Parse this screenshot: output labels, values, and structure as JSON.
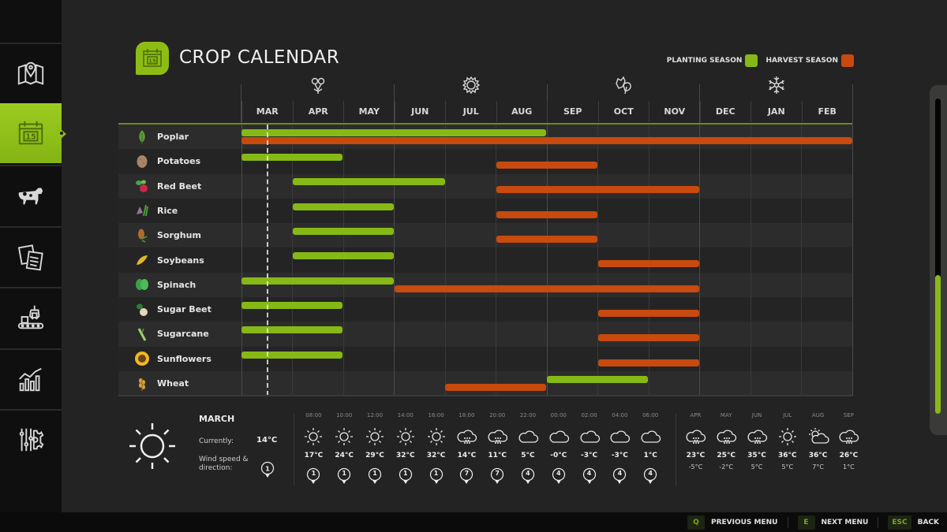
{
  "header": {
    "title": "CROP CALENDAR",
    "badge_icon": "calendar-15-icon",
    "legend": [
      {
        "label": "PLANTING SEASON",
        "color": "#86b916"
      },
      {
        "label": "HARVEST SEASON",
        "color": "#c84a0e"
      }
    ]
  },
  "sidebar": {
    "items": [
      {
        "name": "map",
        "icon": "map-pin-icon",
        "active": false
      },
      {
        "name": "calendar",
        "icon": "calendar-icon",
        "active": true
      },
      {
        "name": "animals",
        "icon": "cow-icon",
        "active": false
      },
      {
        "name": "contracts",
        "icon": "documents-icon",
        "active": false
      },
      {
        "name": "production",
        "icon": "factory-conveyor-icon",
        "active": false
      },
      {
        "name": "statistics",
        "icon": "chart-icon",
        "active": false
      },
      {
        "name": "settings",
        "icon": "sliders-gear-icon",
        "active": false
      }
    ]
  },
  "seasons": [
    {
      "name": "spring",
      "icon": "flower-icon"
    },
    {
      "name": "summer",
      "icon": "sun-icon"
    },
    {
      "name": "autumn",
      "icon": "leaves-icon"
    },
    {
      "name": "winter",
      "icon": "snowflake-icon"
    }
  ],
  "colors": {
    "planting": "#86b916",
    "harvest": "#c84a0e",
    "accent": "#8dbc15"
  },
  "chart_data": {
    "type": "gantt",
    "title": "CROP CALENDAR",
    "months": [
      "MAR",
      "APR",
      "MAY",
      "JUN",
      "JUL",
      "AUG",
      "SEP",
      "OCT",
      "NOV",
      "DEC",
      "JAN",
      "FEB"
    ],
    "current_month_marker": "MAR (mid)",
    "crops": [
      {
        "name": "Poplar",
        "icon": "poplar-leaf-icon",
        "planting": [
          "MAR",
          "AUG"
        ],
        "harvest": [
          "MAR",
          "FEB"
        ]
      },
      {
        "name": "Potatoes",
        "icon": "potato-icon",
        "planting": [
          "MAR",
          "APR"
        ],
        "harvest": [
          "AUG",
          "SEP"
        ]
      },
      {
        "name": "Red Beet",
        "icon": "red-beet-icon",
        "planting": [
          "APR",
          "JUN"
        ],
        "harvest": [
          "AUG",
          "NOV"
        ]
      },
      {
        "name": "Rice",
        "icon": "rice-icon",
        "planting": [
          "APR",
          "MAY"
        ],
        "harvest": [
          "AUG",
          "SEP"
        ]
      },
      {
        "name": "Sorghum",
        "icon": "sorghum-icon",
        "planting": [
          "APR",
          "MAY"
        ],
        "harvest": [
          "AUG",
          "SEP"
        ]
      },
      {
        "name": "Soybeans",
        "icon": "soybeans-icon",
        "planting": [
          "APR",
          "MAY"
        ],
        "harvest": [
          "OCT",
          "NOV"
        ]
      },
      {
        "name": "Spinach",
        "icon": "spinach-icon",
        "planting": [
          "MAR",
          "MAY"
        ],
        "harvest": [
          "JUN",
          "NOV"
        ]
      },
      {
        "name": "Sugar Beet",
        "icon": "sugar-beet-icon",
        "planting": [
          "MAR",
          "APR"
        ],
        "harvest": [
          "OCT",
          "NOV"
        ]
      },
      {
        "name": "Sugarcane",
        "icon": "sugarcane-icon",
        "planting": [
          "MAR",
          "APR"
        ],
        "harvest": [
          "OCT",
          "NOV"
        ]
      },
      {
        "name": "Sunflowers",
        "icon": "sunflower-icon",
        "planting": [
          "MAR",
          "APR"
        ],
        "harvest": [
          "OCT",
          "NOV"
        ]
      },
      {
        "name": "Wheat",
        "icon": "wheat-icon",
        "planting": [
          "SEP",
          "OCT"
        ],
        "harvest": [
          "JUL",
          "AUG"
        ]
      }
    ]
  },
  "weather": {
    "month": "MARCH",
    "currently_label": "Currently:",
    "current_temp": "14°C",
    "wind_label_1": "Wind speed &",
    "wind_label_2": "direction:",
    "current_wind": "1",
    "hourly": [
      {
        "time": "08:00",
        "icon": "sun",
        "temp": "17°C",
        "wind": "1"
      },
      {
        "time": "10:00",
        "icon": "sun",
        "temp": "24°C",
        "wind": "1"
      },
      {
        "time": "12:00",
        "icon": "sun",
        "temp": "29°C",
        "wind": "1"
      },
      {
        "time": "14:00",
        "icon": "sun",
        "temp": "32°C",
        "wind": "1"
      },
      {
        "time": "16:00",
        "icon": "sun",
        "temp": "32°C",
        "wind": "1"
      },
      {
        "time": "18:00",
        "icon": "rain",
        "temp": "14°C",
        "wind": "7"
      },
      {
        "time": "20:00",
        "icon": "rain",
        "temp": "11°C",
        "wind": "7"
      },
      {
        "time": "22:00",
        "icon": "cloud",
        "temp": "5°C",
        "wind": "4"
      },
      {
        "time": "00:00",
        "icon": "cloud",
        "temp": "-0°C",
        "wind": "4"
      },
      {
        "time": "02:00",
        "icon": "cloud",
        "temp": "-3°C",
        "wind": "4"
      },
      {
        "time": "04:00",
        "icon": "cloud",
        "temp": "-3°C",
        "wind": "4"
      },
      {
        "time": "06:00",
        "icon": "cloud",
        "temp": "1°C",
        "wind": "4"
      }
    ],
    "forecast": [
      {
        "month": "APR",
        "icon": "rain",
        "high": "23°C",
        "low": "-5°C"
      },
      {
        "month": "MAY",
        "icon": "rain",
        "high": "25°C",
        "low": "-2°C"
      },
      {
        "month": "JUN",
        "icon": "rain",
        "high": "35°C",
        "low": "5°C"
      },
      {
        "month": "JUL",
        "icon": "sun",
        "high": "36°C",
        "low": "5°C"
      },
      {
        "month": "AUG",
        "icon": "partly-cloudy",
        "high": "36°C",
        "low": "7°C"
      },
      {
        "month": "SEP",
        "icon": "rain",
        "high": "26°C",
        "low": "1°C"
      }
    ]
  },
  "footer": {
    "buttons": [
      {
        "key": "Q",
        "label": "PREVIOUS MENU"
      },
      {
        "key": "E",
        "label": "NEXT MENU"
      },
      {
        "key": "ESC",
        "label": "BACK"
      }
    ]
  }
}
